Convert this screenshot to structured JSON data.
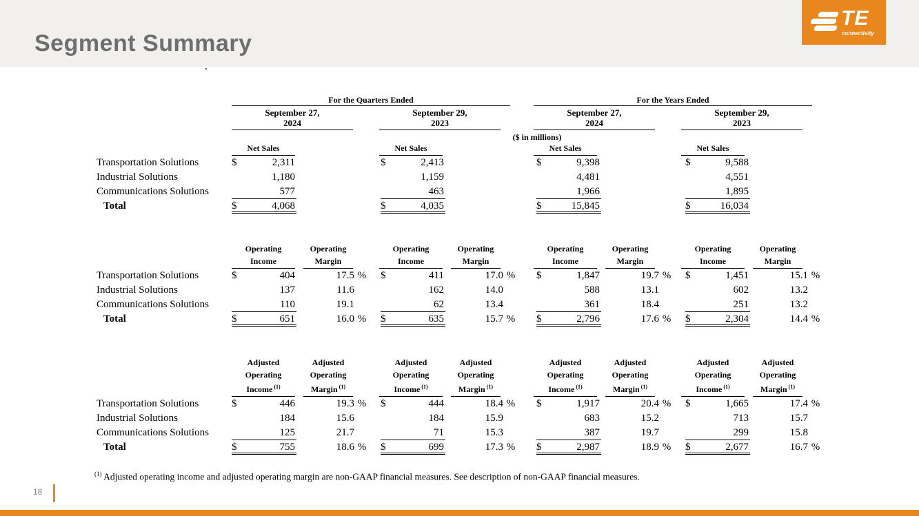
{
  "slide": {
    "title": "Segment Summary",
    "page_number": "18",
    "footnote_sup": "(1)",
    "footnote_text": "Adjusted operating income and adjusted operating margin are non-GAAP financial measures. See description of non-GAAP financial measures.",
    "colors": {
      "accent_orange": "#e8871e",
      "title_gray": "#6e6e6e",
      "header_band": "#f1f0ee"
    }
  },
  "logo": {
    "brand": "TE",
    "tagline": "connectivity"
  },
  "table": {
    "units_note": "($ in millions)",
    "currency_symbol": "$",
    "percent_symbol": "%",
    "period_groups": [
      {
        "label": "For the Quarters Ended"
      },
      {
        "label": "For the Years Ended"
      }
    ],
    "column_dates": [
      {
        "line1": "September 27,",
        "line2": "2024"
      },
      {
        "line1": "September 29,",
        "line2": "2023"
      },
      {
        "line1": "September 27,",
        "line2": "2024"
      },
      {
        "line1": "September 29,",
        "line2": "2023"
      }
    ],
    "sections": [
      {
        "id": "net-sales",
        "value_header": [
          "Net Sales"
        ],
        "value_header_sup": null,
        "margin_header": null,
        "margin_header_sup": null,
        "rows": [
          {
            "label": "Transportation Solutions",
            "total": false,
            "values": [
              "2,311",
              "2,413",
              "9,398",
              "9,588"
            ],
            "margins": null
          },
          {
            "label": "Industrial Solutions",
            "total": false,
            "values": [
              "1,180",
              "1,159",
              "4,481",
              "4,551"
            ],
            "margins": null
          },
          {
            "label": "Communications Solutions",
            "total": false,
            "values": [
              "577",
              "463",
              "1,966",
              "1,895"
            ],
            "margins": null
          },
          {
            "label": "Total",
            "total": true,
            "values": [
              "4,068",
              "4,035",
              "15,845",
              "16,034"
            ],
            "margins": null
          }
        ]
      },
      {
        "id": "operating",
        "value_header": [
          "Operating",
          "Income"
        ],
        "value_header_sup": null,
        "margin_header": [
          "Operating",
          "Margin"
        ],
        "margin_header_sup": null,
        "rows": [
          {
            "label": "Transportation Solutions",
            "total": false,
            "values": [
              "404",
              "411",
              "1,847",
              "1,451"
            ],
            "margins": [
              "17.5",
              "17.0",
              "19.7",
              "15.1"
            ]
          },
          {
            "label": "Industrial Solutions",
            "total": false,
            "values": [
              "137",
              "162",
              "588",
              "602"
            ],
            "margins": [
              "11.6",
              "14.0",
              "13.1",
              "13.2"
            ]
          },
          {
            "label": "Communications Solutions",
            "total": false,
            "values": [
              "110",
              "62",
              "361",
              "251"
            ],
            "margins": [
              "19.1",
              "13.4",
              "18.4",
              "13.2"
            ]
          },
          {
            "label": "Total",
            "total": true,
            "values": [
              "651",
              "635",
              "2,796",
              "2,304"
            ],
            "margins": [
              "16.0",
              "15.7",
              "17.6",
              "14.4"
            ]
          }
        ]
      },
      {
        "id": "adjusted-operating",
        "value_header": [
          "Adjusted",
          "Operating",
          "Income"
        ],
        "value_header_sup": "(1)",
        "margin_header": [
          "Adjusted",
          "Operating",
          "Margin"
        ],
        "margin_header_sup": "(1)",
        "rows": [
          {
            "label": "Transportation Solutions",
            "total": false,
            "values": [
              "446",
              "444",
              "1,917",
              "1,665"
            ],
            "margins": [
              "19.3",
              "18.4",
              "20.4",
              "17.4"
            ]
          },
          {
            "label": "Industrial Solutions",
            "total": false,
            "values": [
              "184",
              "184",
              "683",
              "713"
            ],
            "margins": [
              "15.6",
              "15.9",
              "15.2",
              "15.7"
            ]
          },
          {
            "label": "Communications Solutions",
            "total": false,
            "values": [
              "125",
              "71",
              "387",
              "299"
            ],
            "margins": [
              "21.7",
              "15.3",
              "19.7",
              "15.8"
            ]
          },
          {
            "label": "Total",
            "total": true,
            "values": [
              "755",
              "699",
              "2,987",
              "2,677"
            ],
            "margins": [
              "18.6",
              "17.3",
              "18.9",
              "16.7"
            ]
          }
        ]
      }
    ]
  }
}
